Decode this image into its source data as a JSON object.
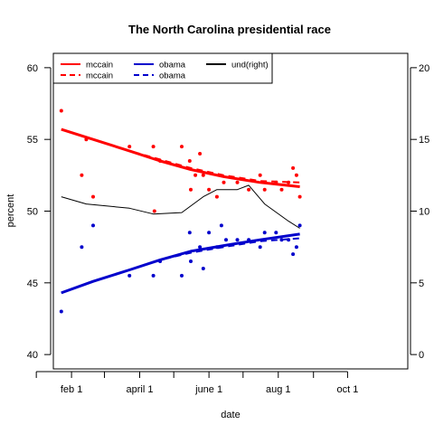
{
  "chart_data": {
    "type": "scatter",
    "title": "The North Carolina presidential race",
    "xlabel": "date",
    "ylabel": "percent",
    "ylabel_right": "",
    "x_ticks": [
      {
        "date": "2008-01-01",
        "label": ""
      },
      {
        "date": "2008-02-01",
        "label": "feb 1"
      },
      {
        "date": "2008-03-01",
        "label": ""
      },
      {
        "date": "2008-04-01",
        "label": "april 1"
      },
      {
        "date": "2008-05-01",
        "label": ""
      },
      {
        "date": "2008-06-01",
        "label": "june 1"
      },
      {
        "date": "2008-07-01",
        "label": ""
      },
      {
        "date": "2008-08-01",
        "label": "aug 1"
      },
      {
        "date": "2008-09-01",
        "label": ""
      },
      {
        "date": "2008-10-01",
        "label": "oct 1"
      }
    ],
    "xlim": [
      "2008-01-16",
      "2008-11-23"
    ],
    "ylim": [
      39,
      61
    ],
    "y_ticks": [
      40,
      45,
      50,
      55,
      60
    ],
    "y_right_lim": [
      -1,
      21
    ],
    "y_right_ticks": [
      0,
      5,
      10,
      15,
      20
    ],
    "legend_position": "top-left",
    "legend": [
      {
        "label": "mccain",
        "color": "#ff0000",
        "style": "solid"
      },
      {
        "label": "mccain",
        "color": "#ff0000",
        "style": "dashed"
      },
      {
        "label": "obama",
        "color": "#0000cc",
        "style": "solid"
      },
      {
        "label": "obama",
        "color": "#0000cc",
        "style": "dashed"
      },
      {
        "label": "und(right)",
        "color": "#000000",
        "style": "solid"
      }
    ],
    "series": [
      {
        "name": "mccain",
        "color": "#ff0000",
        "kind": "points",
        "points": [
          {
            "x": "2008-01-23",
            "y": 57
          },
          {
            "x": "2008-02-10",
            "y": 52.5
          },
          {
            "x": "2008-02-14",
            "y": 55
          },
          {
            "x": "2008-02-20",
            "y": 51
          },
          {
            "x": "2008-03-23",
            "y": 54.5
          },
          {
            "x": "2008-04-13",
            "y": 54.5
          },
          {
            "x": "2008-04-14",
            "y": 50
          },
          {
            "x": "2008-04-19",
            "y": 53.5
          },
          {
            "x": "2008-05-08",
            "y": 54.5
          },
          {
            "x": "2008-05-15",
            "y": 53.5
          },
          {
            "x": "2008-05-16",
            "y": 51.5
          },
          {
            "x": "2008-05-20",
            "y": 52.5
          },
          {
            "x": "2008-05-24",
            "y": 54
          },
          {
            "x": "2008-05-27",
            "y": 52.5
          },
          {
            "x": "2008-06-01",
            "y": 51.5
          },
          {
            "x": "2008-06-08",
            "y": 51
          },
          {
            "x": "2008-06-14",
            "y": 52
          },
          {
            "x": "2008-06-26",
            "y": 52
          },
          {
            "x": "2008-07-06",
            "y": 51.5
          },
          {
            "x": "2008-07-16",
            "y": 52.5
          },
          {
            "x": "2008-07-20",
            "y": 51.5
          },
          {
            "x": "2008-07-30",
            "y": 52
          },
          {
            "x": "2008-08-04",
            "y": 51.5
          },
          {
            "x": "2008-08-10",
            "y": 52
          },
          {
            "x": "2008-08-14",
            "y": 53
          },
          {
            "x": "2008-08-17",
            "y": 52.5
          },
          {
            "x": "2008-08-20",
            "y": 51
          }
        ]
      },
      {
        "name": "obama",
        "color": "#0000cc",
        "kind": "points",
        "points": [
          {
            "x": "2008-01-23",
            "y": 43
          },
          {
            "x": "2008-02-10",
            "y": 47.5
          },
          {
            "x": "2008-02-20",
            "y": 49
          },
          {
            "x": "2008-03-23",
            "y": 45.5
          },
          {
            "x": "2008-04-13",
            "y": 45.5
          },
          {
            "x": "2008-04-19",
            "y": 46.5
          },
          {
            "x": "2008-05-08",
            "y": 45.5
          },
          {
            "x": "2008-05-15",
            "y": 48.5
          },
          {
            "x": "2008-05-16",
            "y": 46.5
          },
          {
            "x": "2008-05-24",
            "y": 47.5
          },
          {
            "x": "2008-05-27",
            "y": 46
          },
          {
            "x": "2008-06-01",
            "y": 48.5
          },
          {
            "x": "2008-06-08",
            "y": 47.5
          },
          {
            "x": "2008-06-12",
            "y": 49
          },
          {
            "x": "2008-06-16",
            "y": 48
          },
          {
            "x": "2008-06-26",
            "y": 48
          },
          {
            "x": "2008-07-06",
            "y": 48
          },
          {
            "x": "2008-07-16",
            "y": 47.5
          },
          {
            "x": "2008-07-20",
            "y": 48.5
          },
          {
            "x": "2008-07-30",
            "y": 48.5
          },
          {
            "x": "2008-08-04",
            "y": 48
          },
          {
            "x": "2008-08-10",
            "y": 48
          },
          {
            "x": "2008-08-14",
            "y": 47
          },
          {
            "x": "2008-08-17",
            "y": 47.5
          },
          {
            "x": "2008-08-20",
            "y": 49
          }
        ]
      },
      {
        "name": "mccain",
        "color": "#ff0000",
        "kind": "line",
        "style": "solid",
        "width": 3,
        "points": [
          {
            "x": "2008-01-23",
            "y": 55.7
          },
          {
            "x": "2008-02-20",
            "y": 55
          },
          {
            "x": "2008-03-23",
            "y": 54.2
          },
          {
            "x": "2008-04-19",
            "y": 53.5
          },
          {
            "x": "2008-05-16",
            "y": 52.9
          },
          {
            "x": "2008-06-14",
            "y": 52.4
          },
          {
            "x": "2008-07-16",
            "y": 52
          },
          {
            "x": "2008-08-20",
            "y": 51.7
          }
        ]
      },
      {
        "name": "mccain",
        "color": "#ff0000",
        "kind": "line",
        "style": "dashed",
        "width": 2,
        "points": [
          {
            "x": "2008-01-23",
            "y": 55.7
          },
          {
            "x": "2008-02-20",
            "y": 55
          },
          {
            "x": "2008-03-23",
            "y": 54.2
          },
          {
            "x": "2008-04-19",
            "y": 53.6
          },
          {
            "x": "2008-05-16",
            "y": 53
          },
          {
            "x": "2008-06-14",
            "y": 52.5
          },
          {
            "x": "2008-07-16",
            "y": 52.1
          },
          {
            "x": "2008-08-20",
            "y": 52
          }
        ]
      },
      {
        "name": "obama",
        "color": "#0000cc",
        "kind": "line",
        "style": "solid",
        "width": 3,
        "points": [
          {
            "x": "2008-01-23",
            "y": 44.3
          },
          {
            "x": "2008-02-20",
            "y": 45.1
          },
          {
            "x": "2008-03-23",
            "y": 45.9
          },
          {
            "x": "2008-04-19",
            "y": 46.6
          },
          {
            "x": "2008-05-16",
            "y": 47.2
          },
          {
            "x": "2008-06-14",
            "y": 47.6
          },
          {
            "x": "2008-07-16",
            "y": 48
          },
          {
            "x": "2008-08-20",
            "y": 48.4
          }
        ]
      },
      {
        "name": "obama",
        "color": "#0000cc",
        "kind": "line",
        "style": "dashed",
        "width": 2,
        "points": [
          {
            "x": "2008-01-23",
            "y": 44.3
          },
          {
            "x": "2008-02-20",
            "y": 45.1
          },
          {
            "x": "2008-03-23",
            "y": 45.9
          },
          {
            "x": "2008-04-19",
            "y": 46.6
          },
          {
            "x": "2008-05-16",
            "y": 47.1
          },
          {
            "x": "2008-06-14",
            "y": 47.5
          },
          {
            "x": "2008-07-16",
            "y": 47.9
          },
          {
            "x": "2008-08-20",
            "y": 48.1
          }
        ]
      },
      {
        "name": "und(right)",
        "color": "#000000",
        "kind": "line",
        "style": "solid",
        "width": 1,
        "axis": "right",
        "points": [
          {
            "x": "2008-01-23",
            "y": 11
          },
          {
            "x": "2008-02-14",
            "y": 10.5
          },
          {
            "x": "2008-03-23",
            "y": 10.2
          },
          {
            "x": "2008-04-13",
            "y": 9.8
          },
          {
            "x": "2008-05-08",
            "y": 9.9
          },
          {
            "x": "2008-05-27",
            "y": 11
          },
          {
            "x": "2008-06-08",
            "y": 11.5
          },
          {
            "x": "2008-06-26",
            "y": 11.5
          },
          {
            "x": "2008-07-06",
            "y": 11.8
          },
          {
            "x": "2008-07-20",
            "y": 10.5
          },
          {
            "x": "2008-08-10",
            "y": 9.3
          },
          {
            "x": "2008-08-20",
            "y": 8.8
          }
        ]
      }
    ]
  }
}
